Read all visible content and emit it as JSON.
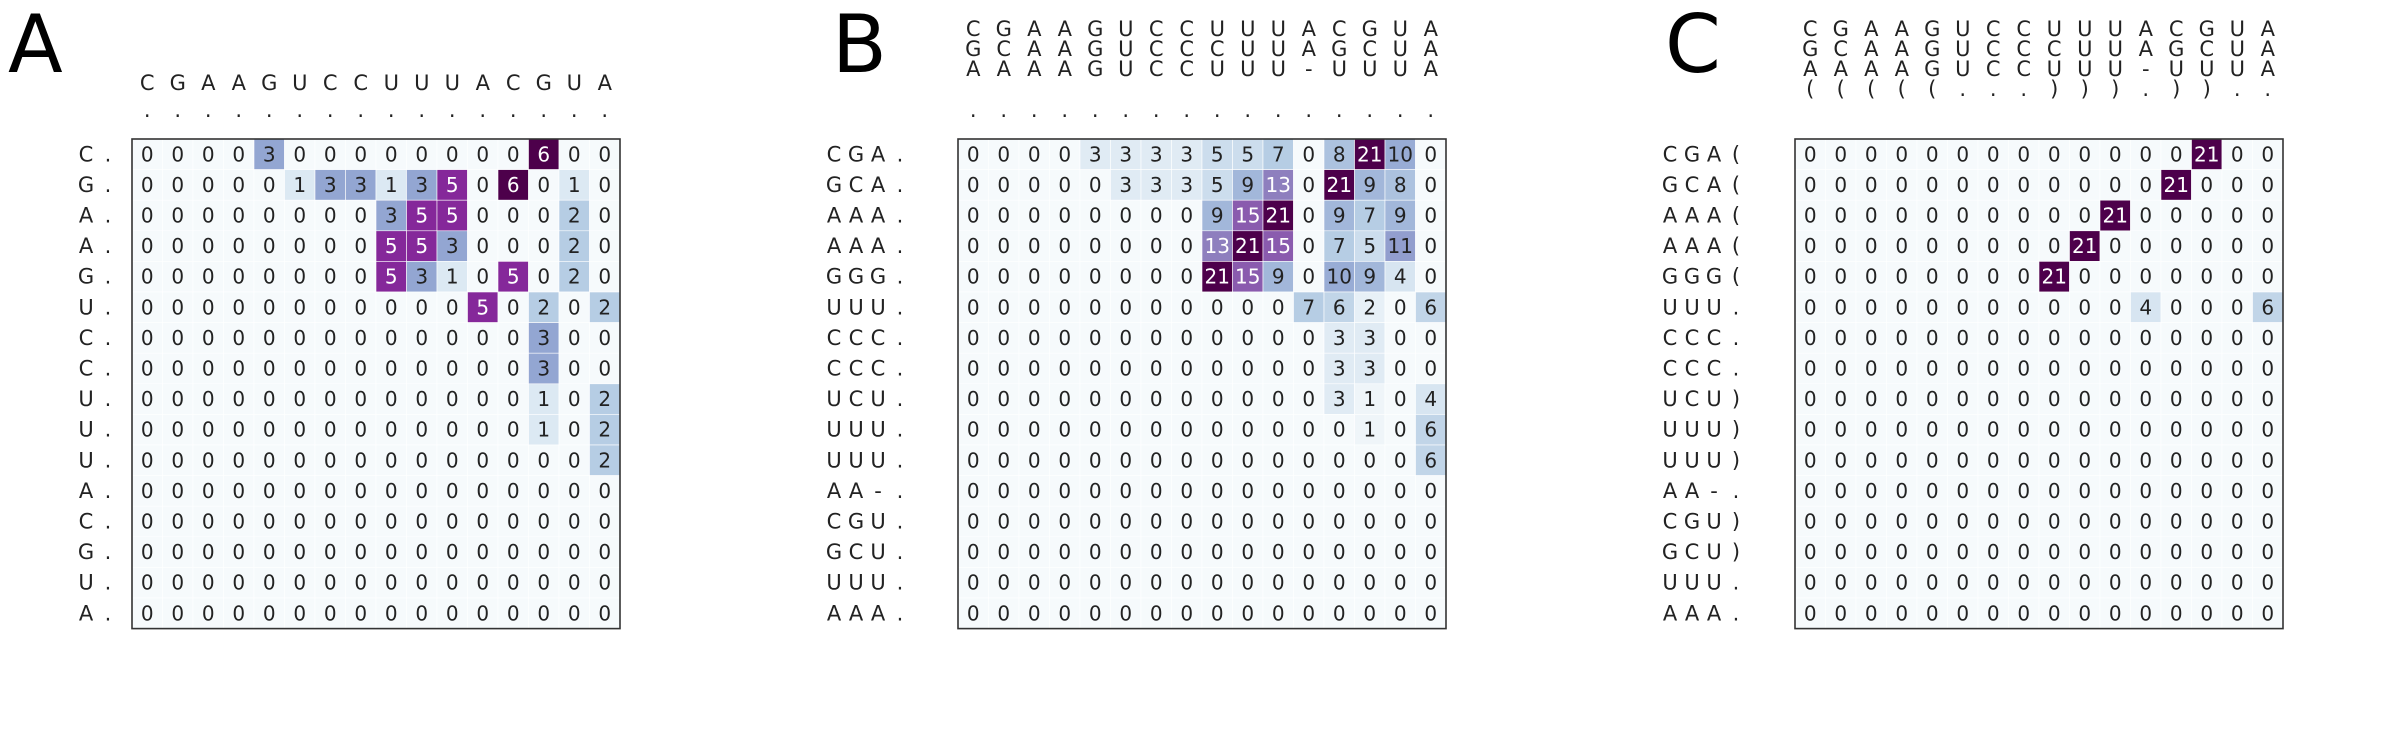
{
  "colors": {
    "zero": "#f6fafc",
    "grid": "#ffffff",
    "border": "#333333",
    "text_dark": "#222222",
    "text_light": "#ffffff",
    "scale": [
      "#f6fafc",
      "#dce9f3",
      "#b6cde4",
      "#93a6d2",
      "#8c6fb6",
      "#85289a",
      "#4d004b"
    ]
  },
  "chart_data": [
    {
      "type": "heatmap",
      "title": "A",
      "col_labels": [
        [
          "C",
          "G",
          "A",
          "A",
          "G",
          "U",
          "C",
          "C",
          "U",
          "U",
          "U",
          "A",
          "C",
          "G",
          "U",
          "A"
        ],
        [
          ".",
          ".",
          ".",
          ".",
          ".",
          ".",
          ".",
          ".",
          ".",
          ".",
          ".",
          ".",
          ".",
          ".",
          ".",
          "."
        ]
      ],
      "row_labels": [
        [
          "C",
          "G",
          "A",
          "A",
          "G",
          "U",
          "C",
          "C",
          "U",
          "U",
          "U",
          "A",
          "C",
          "G",
          "U",
          "A"
        ],
        [
          ".",
          ".",
          ".",
          ".",
          ".",
          ".",
          ".",
          ".",
          ".",
          ".",
          ".",
          ".",
          ".",
          ".",
          ".",
          "."
        ]
      ],
      "values": [
        [
          0,
          0,
          0,
          0,
          3,
          0,
          0,
          0,
          0,
          0,
          0,
          0,
          0,
          6,
          0,
          0
        ],
        [
          0,
          0,
          0,
          0,
          0,
          1,
          3,
          3,
          1,
          3,
          5,
          0,
          6,
          0,
          1,
          0
        ],
        [
          0,
          0,
          0,
          0,
          0,
          0,
          0,
          0,
          3,
          5,
          5,
          0,
          0,
          0,
          2,
          0
        ],
        [
          0,
          0,
          0,
          0,
          0,
          0,
          0,
          0,
          5,
          5,
          3,
          0,
          0,
          0,
          2,
          0
        ],
        [
          0,
          0,
          0,
          0,
          0,
          0,
          0,
          0,
          5,
          3,
          1,
          0,
          5,
          0,
          2,
          0
        ],
        [
          0,
          0,
          0,
          0,
          0,
          0,
          0,
          0,
          0,
          0,
          0,
          5,
          0,
          2,
          0,
          2
        ],
        [
          0,
          0,
          0,
          0,
          0,
          0,
          0,
          0,
          0,
          0,
          0,
          0,
          0,
          3,
          0,
          0
        ],
        [
          0,
          0,
          0,
          0,
          0,
          0,
          0,
          0,
          0,
          0,
          0,
          0,
          0,
          3,
          0,
          0
        ],
        [
          0,
          0,
          0,
          0,
          0,
          0,
          0,
          0,
          0,
          0,
          0,
          0,
          0,
          1,
          0,
          2
        ],
        [
          0,
          0,
          0,
          0,
          0,
          0,
          0,
          0,
          0,
          0,
          0,
          0,
          0,
          1,
          0,
          2
        ],
        [
          0,
          0,
          0,
          0,
          0,
          0,
          0,
          0,
          0,
          0,
          0,
          0,
          0,
          0,
          0,
          2
        ],
        [
          0,
          0,
          0,
          0,
          0,
          0,
          0,
          0,
          0,
          0,
          0,
          0,
          0,
          0,
          0,
          0
        ],
        [
          0,
          0,
          0,
          0,
          0,
          0,
          0,
          0,
          0,
          0,
          0,
          0,
          0,
          0,
          0,
          0
        ],
        [
          0,
          0,
          0,
          0,
          0,
          0,
          0,
          0,
          0,
          0,
          0,
          0,
          0,
          0,
          0,
          0
        ],
        [
          0,
          0,
          0,
          0,
          0,
          0,
          0,
          0,
          0,
          0,
          0,
          0,
          0,
          0,
          0,
          0
        ],
        [
          0,
          0,
          0,
          0,
          0,
          0,
          0,
          0,
          0,
          0,
          0,
          0,
          0,
          0,
          0,
          0
        ]
      ],
      "vmax": 6
    },
    {
      "type": "heatmap",
      "title": "B",
      "col_labels": [
        [
          "C",
          "G",
          "A",
          "A",
          "G",
          "U",
          "C",
          "C",
          "U",
          "U",
          "U",
          "A",
          "C",
          "G",
          "U",
          "A"
        ],
        [
          "G",
          "C",
          "A",
          "A",
          "G",
          "U",
          "C",
          "C",
          "C",
          "U",
          "U",
          "A",
          "G",
          "C",
          "U",
          "A"
        ],
        [
          "A",
          "A",
          "A",
          "A",
          "G",
          "U",
          "C",
          "C",
          "U",
          "U",
          "U",
          "-",
          "U",
          "U",
          "U",
          "A"
        ],
        [
          ".",
          ".",
          ".",
          ".",
          ".",
          ".",
          ".",
          ".",
          ".",
          ".",
          ".",
          ".",
          ".",
          ".",
          ".",
          "."
        ]
      ],
      "row_labels": [
        [
          "C",
          "G",
          "A",
          "A",
          "G",
          "U",
          "C",
          "C",
          "U",
          "U",
          "U",
          "A",
          "C",
          "G",
          "U",
          "A"
        ],
        [
          "G",
          "C",
          "A",
          "A",
          "G",
          "U",
          "C",
          "C",
          "C",
          "U",
          "U",
          "A",
          "G",
          "C",
          "U",
          "A"
        ],
        [
          "A",
          "A",
          "A",
          "A",
          "G",
          "U",
          "C",
          "C",
          "U",
          "U",
          "U",
          "-",
          "U",
          "U",
          "U",
          "A"
        ],
        [
          ".",
          ".",
          ".",
          ".",
          ".",
          ".",
          ".",
          ".",
          ".",
          ".",
          ".",
          ".",
          ".",
          ".",
          ".",
          "."
        ]
      ],
      "values": [
        [
          0,
          0,
          0,
          0,
          3,
          3,
          3,
          3,
          5,
          5,
          7,
          0,
          8,
          21,
          10,
          0
        ],
        [
          0,
          0,
          0,
          0,
          0,
          3,
          3,
          3,
          5,
          9,
          13,
          0,
          21,
          9,
          8,
          0
        ],
        [
          0,
          0,
          0,
          0,
          0,
          0,
          0,
          0,
          9,
          15,
          21,
          0,
          9,
          7,
          9,
          0
        ],
        [
          0,
          0,
          0,
          0,
          0,
          0,
          0,
          0,
          13,
          21,
          15,
          0,
          7,
          5,
          11,
          0
        ],
        [
          0,
          0,
          0,
          0,
          0,
          0,
          0,
          0,
          21,
          15,
          9,
          0,
          10,
          9,
          4,
          0
        ],
        [
          0,
          0,
          0,
          0,
          0,
          0,
          0,
          0,
          0,
          0,
          0,
          7,
          6,
          2,
          0,
          6
        ],
        [
          0,
          0,
          0,
          0,
          0,
          0,
          0,
          0,
          0,
          0,
          0,
          0,
          3,
          3,
          0,
          0
        ],
        [
          0,
          0,
          0,
          0,
          0,
          0,
          0,
          0,
          0,
          0,
          0,
          0,
          3,
          3,
          0,
          0
        ],
        [
          0,
          0,
          0,
          0,
          0,
          0,
          0,
          0,
          0,
          0,
          0,
          0,
          3,
          1,
          0,
          4
        ],
        [
          0,
          0,
          0,
          0,
          0,
          0,
          0,
          0,
          0,
          0,
          0,
          0,
          0,
          1,
          0,
          6
        ],
        [
          0,
          0,
          0,
          0,
          0,
          0,
          0,
          0,
          0,
          0,
          0,
          0,
          0,
          0,
          0,
          6
        ],
        [
          0,
          0,
          0,
          0,
          0,
          0,
          0,
          0,
          0,
          0,
          0,
          0,
          0,
          0,
          0,
          0
        ],
        [
          0,
          0,
          0,
          0,
          0,
          0,
          0,
          0,
          0,
          0,
          0,
          0,
          0,
          0,
          0,
          0
        ],
        [
          0,
          0,
          0,
          0,
          0,
          0,
          0,
          0,
          0,
          0,
          0,
          0,
          0,
          0,
          0,
          0
        ],
        [
          0,
          0,
          0,
          0,
          0,
          0,
          0,
          0,
          0,
          0,
          0,
          0,
          0,
          0,
          0,
          0
        ],
        [
          0,
          0,
          0,
          0,
          0,
          0,
          0,
          0,
          0,
          0,
          0,
          0,
          0,
          0,
          0,
          0
        ]
      ],
      "vmax": 21
    },
    {
      "type": "heatmap",
      "title": "C",
      "col_labels": [
        [
          "C",
          "G",
          "A",
          "A",
          "G",
          "U",
          "C",
          "C",
          "U",
          "U",
          "U",
          "A",
          "C",
          "G",
          "U",
          "A"
        ],
        [
          "G",
          "C",
          "A",
          "A",
          "G",
          "U",
          "C",
          "C",
          "C",
          "U",
          "U",
          "A",
          "G",
          "C",
          "U",
          "A"
        ],
        [
          "A",
          "A",
          "A",
          "A",
          "G",
          "U",
          "C",
          "C",
          "U",
          "U",
          "U",
          "-",
          "U",
          "U",
          "U",
          "A"
        ],
        [
          "(",
          "(",
          "(",
          "(",
          "(",
          ".",
          ".",
          ".",
          ")",
          ")",
          ")",
          ".",
          ")",
          ")",
          ".",
          "."
        ]
      ],
      "row_labels": [
        [
          "C",
          "G",
          "A",
          "A",
          "G",
          "U",
          "C",
          "C",
          "U",
          "U",
          "U",
          "A",
          "C",
          "G",
          "U",
          "A"
        ],
        [
          "G",
          "C",
          "A",
          "A",
          "G",
          "U",
          "C",
          "C",
          "C",
          "U",
          "U",
          "A",
          "G",
          "C",
          "U",
          "A"
        ],
        [
          "A",
          "A",
          "A",
          "A",
          "G",
          "U",
          "C",
          "C",
          "U",
          "U",
          "U",
          "-",
          "U",
          "U",
          "U",
          "A"
        ],
        [
          "(",
          "(",
          "(",
          "(",
          "(",
          ".",
          ".",
          ".",
          ")",
          ")",
          ")",
          ".",
          ")",
          ")",
          ".",
          "."
        ]
      ],
      "values": [
        [
          0,
          0,
          0,
          0,
          0,
          0,
          0,
          0,
          0,
          0,
          0,
          0,
          0,
          21,
          0,
          0
        ],
        [
          0,
          0,
          0,
          0,
          0,
          0,
          0,
          0,
          0,
          0,
          0,
          0,
          21,
          0,
          0,
          0
        ],
        [
          0,
          0,
          0,
          0,
          0,
          0,
          0,
          0,
          0,
          0,
          21,
          0,
          0,
          0,
          0,
          0
        ],
        [
          0,
          0,
          0,
          0,
          0,
          0,
          0,
          0,
          0,
          21,
          0,
          0,
          0,
          0,
          0,
          0
        ],
        [
          0,
          0,
          0,
          0,
          0,
          0,
          0,
          0,
          21,
          0,
          0,
          0,
          0,
          0,
          0,
          0
        ],
        [
          0,
          0,
          0,
          0,
          0,
          0,
          0,
          0,
          0,
          0,
          0,
          4,
          0,
          0,
          0,
          6
        ],
        [
          0,
          0,
          0,
          0,
          0,
          0,
          0,
          0,
          0,
          0,
          0,
          0,
          0,
          0,
          0,
          0
        ],
        [
          0,
          0,
          0,
          0,
          0,
          0,
          0,
          0,
          0,
          0,
          0,
          0,
          0,
          0,
          0,
          0
        ],
        [
          0,
          0,
          0,
          0,
          0,
          0,
          0,
          0,
          0,
          0,
          0,
          0,
          0,
          0,
          0,
          0
        ],
        [
          0,
          0,
          0,
          0,
          0,
          0,
          0,
          0,
          0,
          0,
          0,
          0,
          0,
          0,
          0,
          0
        ],
        [
          0,
          0,
          0,
          0,
          0,
          0,
          0,
          0,
          0,
          0,
          0,
          0,
          0,
          0,
          0,
          0
        ],
        [
          0,
          0,
          0,
          0,
          0,
          0,
          0,
          0,
          0,
          0,
          0,
          0,
          0,
          0,
          0,
          0
        ],
        [
          0,
          0,
          0,
          0,
          0,
          0,
          0,
          0,
          0,
          0,
          0,
          0,
          0,
          0,
          0,
          0
        ],
        [
          0,
          0,
          0,
          0,
          0,
          0,
          0,
          0,
          0,
          0,
          0,
          0,
          0,
          0,
          0,
          0
        ],
        [
          0,
          0,
          0,
          0,
          0,
          0,
          0,
          0,
          0,
          0,
          0,
          0,
          0,
          0,
          0,
          0
        ],
        [
          0,
          0,
          0,
          0,
          0,
          0,
          0,
          0,
          0,
          0,
          0,
          0,
          0,
          0,
          0,
          0
        ]
      ],
      "vmax": 21
    }
  ]
}
